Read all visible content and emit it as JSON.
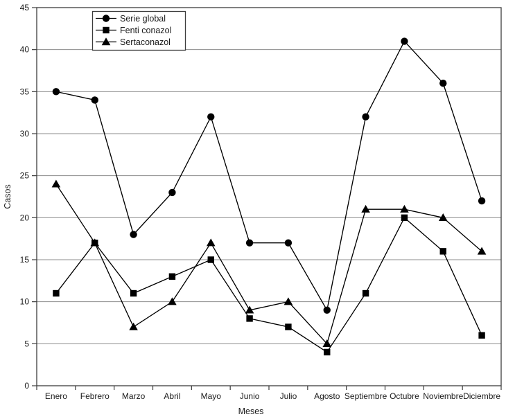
{
  "figure": {
    "background": "#ffffff",
    "line_color": "#000000",
    "grid_color": "#8c8c8c",
    "axis_color": "#3c3c3c",
    "text_color": "#1a1a1a"
  },
  "chart_data": {
    "type": "line",
    "title": "",
    "xlabel": "Meses",
    "ylabel": "Casos",
    "categories": [
      "Enero",
      "Febrero",
      "Marzo",
      "Abril",
      "Mayo",
      "Junio",
      "Julio",
      "Agosto",
      "Septiembre",
      "Octubre",
      "Noviembre",
      "Diciembre"
    ],
    "series": [
      {
        "name": "Serie global",
        "marker": "circle",
        "values": [
          35,
          34,
          18,
          23,
          32,
          17,
          17,
          9,
          32,
          41,
          36,
          22
        ]
      },
      {
        "name": "Fenti conazol",
        "marker": "square",
        "values": [
          11,
          17,
          11,
          13,
          15,
          8,
          7,
          4,
          11,
          20,
          16,
          6
        ]
      },
      {
        "name": "Sertaconazol",
        "marker": "triangle",
        "values": [
          24,
          17,
          7,
          10,
          17,
          9,
          10,
          5,
          21,
          21,
          20,
          16
        ]
      }
    ],
    "ylim": [
      0,
      45
    ],
    "yticks": [
      0,
      5,
      10,
      15,
      20,
      25,
      30,
      35,
      40,
      45
    ],
    "grid": "horizontal",
    "legend_position": "top-left"
  }
}
